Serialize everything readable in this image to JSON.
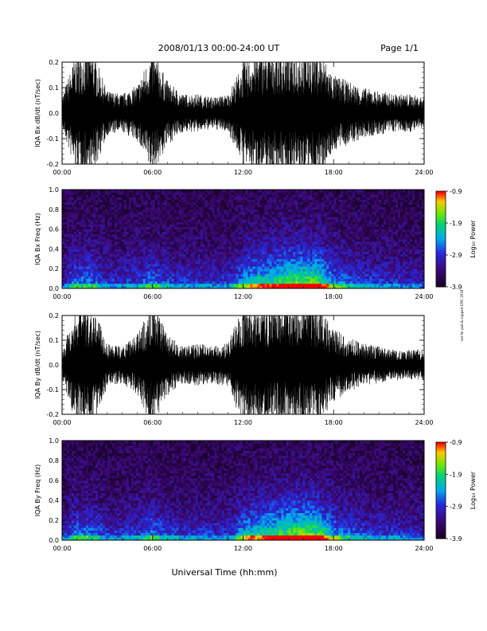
{
  "header": {
    "title": "2008/01/13  00:00-24:00 UT",
    "page": "Page 1/1"
  },
  "footer": {
    "xlabel": "Universal Time (hh:mm)",
    "credit": "not for pub & support EPIC 2018"
  },
  "colors": {
    "trace": "#000000",
    "spectro_background": "#1a0028"
  },
  "chart_data": [
    {
      "type": "line",
      "ylabel": "IQA Bx dB/dt (nT/sec)",
      "ylim": [
        -0.2,
        0.2
      ],
      "yticks": [
        "-0.2",
        "-0.1",
        "0.0",
        "0.1",
        "0.2"
      ],
      "xlim_hours": [
        0,
        24
      ],
      "xticks": [
        "00:00",
        "06:00",
        "12:00",
        "18:00",
        "24:00"
      ],
      "x_hours": [
        0,
        1,
        2,
        3,
        4,
        5,
        6,
        7,
        8,
        9,
        10,
        11,
        12,
        13,
        14,
        15,
        16,
        17,
        18,
        19,
        20,
        21,
        22,
        23,
        24
      ],
      "amplitude": [
        0.05,
        0.2,
        0.2,
        0.07,
        0.06,
        0.09,
        0.2,
        0.1,
        0.06,
        0.06,
        0.05,
        0.06,
        0.16,
        0.2,
        0.2,
        0.2,
        0.2,
        0.2,
        0.12,
        0.1,
        0.08,
        0.07,
        0.06,
        0.06,
        0.05
      ]
    },
    {
      "type": "heatmap",
      "ylabel": "IQA Bx Freq (Hz)",
      "ylim": [
        0.0,
        1.0
      ],
      "yticks": [
        "0.0",
        "0.2",
        "0.4",
        "0.6",
        "0.8",
        "1.0"
      ],
      "xlim_hours": [
        0,
        24
      ],
      "xticks": [
        "00:00",
        "06:00",
        "12:00",
        "18:00",
        "24:00"
      ],
      "colorbar": {
        "label": "Log₁₀ Power",
        "ticks": [
          "-0.9",
          "-1.9",
          "-2.9",
          "-3.9"
        ],
        "range": [
          -3.9,
          -0.9
        ]
      },
      "x_hours": [
        0,
        1,
        2,
        3,
        4,
        5,
        6,
        7,
        8,
        9,
        10,
        11,
        12,
        13,
        14,
        15,
        16,
        17,
        18,
        19,
        20,
        21,
        22,
        23,
        24
      ],
      "intensity": [
        0.25,
        0.45,
        0.45,
        0.3,
        0.3,
        0.35,
        0.45,
        0.35,
        0.3,
        0.3,
        0.3,
        0.3,
        0.5,
        0.65,
        0.7,
        0.8,
        0.85,
        0.8,
        0.5,
        0.4,
        0.35,
        0.3,
        0.3,
        0.28,
        0.25
      ]
    },
    {
      "type": "line",
      "ylabel": "IQA By dB/dt (nT/sec)",
      "ylim": [
        -0.2,
        0.2
      ],
      "yticks": [
        "-0.2",
        "-0.1",
        "0.0",
        "0.1",
        "0.2"
      ],
      "xlim_hours": [
        0,
        24
      ],
      "xticks": [
        "00:00",
        "06:00",
        "12:00",
        "18:00",
        "24:00"
      ],
      "x_hours": [
        0,
        1,
        2,
        3,
        4,
        5,
        6,
        7,
        8,
        9,
        10,
        11,
        12,
        13,
        14,
        15,
        16,
        17,
        18,
        19,
        20,
        21,
        22,
        23,
        24
      ],
      "amplitude": [
        0.05,
        0.2,
        0.2,
        0.07,
        0.06,
        0.1,
        0.2,
        0.1,
        0.06,
        0.07,
        0.06,
        0.07,
        0.2,
        0.2,
        0.2,
        0.2,
        0.2,
        0.2,
        0.12,
        0.09,
        0.07,
        0.06,
        0.05,
        0.05,
        0.05
      ]
    },
    {
      "type": "heatmap",
      "ylabel": "IQA By Freq (Hz)",
      "ylim": [
        0.0,
        1.0
      ],
      "yticks": [
        "0.0",
        "0.2",
        "0.4",
        "0.6",
        "0.8",
        "1.0"
      ],
      "xlim_hours": [
        0,
        24
      ],
      "xticks": [
        "00:00",
        "06:00",
        "12:00",
        "18:00",
        "24:00"
      ],
      "colorbar": {
        "label": "Log₁₀ Power",
        "ticks": [
          "-0.9",
          "-1.9",
          "-2.9",
          "-3.9"
        ],
        "range": [
          -3.9,
          -0.9
        ]
      },
      "x_hours": [
        0,
        1,
        2,
        3,
        4,
        5,
        6,
        7,
        8,
        9,
        10,
        11,
        12,
        13,
        14,
        15,
        16,
        17,
        18,
        19,
        20,
        21,
        22,
        23,
        24
      ],
      "intensity": [
        0.25,
        0.45,
        0.45,
        0.3,
        0.3,
        0.35,
        0.45,
        0.35,
        0.3,
        0.3,
        0.3,
        0.3,
        0.55,
        0.65,
        0.7,
        0.8,
        0.85,
        0.8,
        0.5,
        0.4,
        0.35,
        0.3,
        0.3,
        0.28,
        0.25
      ]
    }
  ]
}
